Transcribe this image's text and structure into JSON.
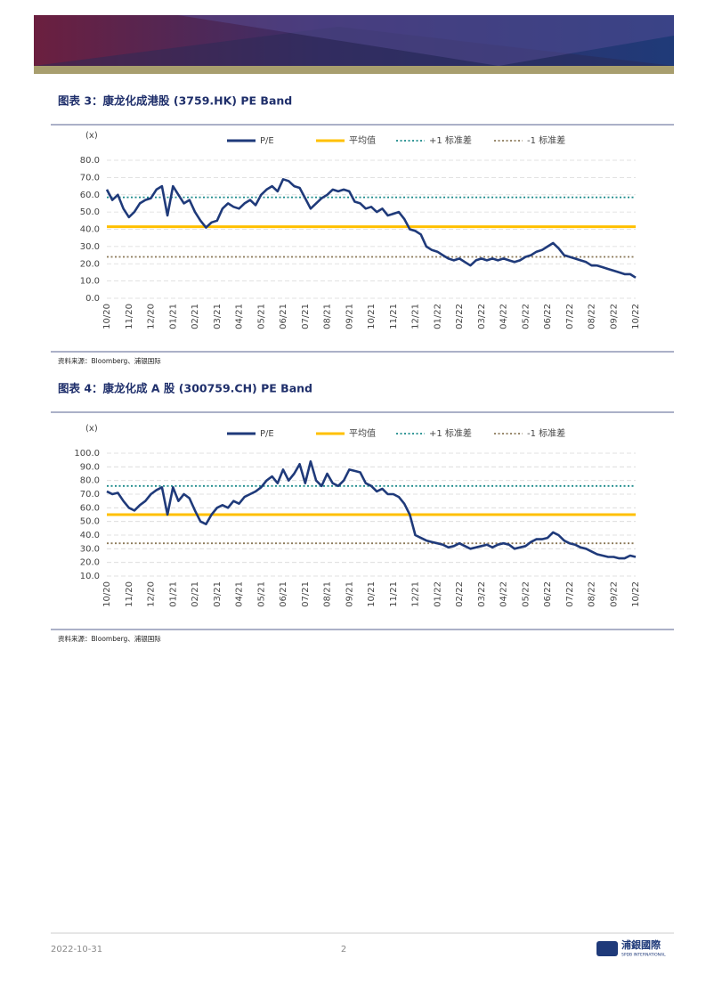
{
  "chart_data": [
    {
      "type": "line",
      "title": "图表 3：康龙化成港股 (3759.HK) PE Band",
      "y_label": "(x)",
      "source": "资料来源：Bloomberg、浦银国际",
      "categories": [
        "10/20",
        null,
        null,
        null,
        "11/20",
        null,
        null,
        null,
        "12/20",
        null,
        null,
        null,
        "01/21",
        null,
        null,
        null,
        "02/21",
        null,
        null,
        null,
        "03/21",
        null,
        null,
        null,
        "04/21",
        null,
        null,
        null,
        "05/21",
        null,
        null,
        null,
        "06/21",
        null,
        null,
        null,
        "07/21",
        null,
        null,
        null,
        "08/21",
        null,
        null,
        null,
        "09/21",
        null,
        null,
        null,
        "10/21",
        null,
        null,
        null,
        "11/21",
        null,
        null,
        null,
        "12/21",
        null,
        null,
        null,
        "01/22",
        null,
        null,
        null,
        "02/22",
        null,
        null,
        null,
        "03/22",
        null,
        null,
        null,
        "04/22",
        null,
        null,
        null,
        "05/22",
        null,
        null,
        null,
        "06/22",
        null,
        null,
        null,
        "07/22",
        null,
        null,
        null,
        "08/22",
        null,
        null,
        null,
        "09/22",
        null,
        null,
        null,
        "10/22"
      ],
      "series": [
        {
          "name": "P/E",
          "color": "#1f3a7a",
          "values": [
            63,
            57,
            60,
            52,
            47,
            50,
            55,
            57,
            58,
            63,
            65,
            48,
            65,
            60,
            55,
            57,
            50,
            45,
            41,
            44,
            45,
            52,
            55,
            53,
            52,
            55,
            57,
            54,
            60,
            63,
            65,
            62,
            69,
            68,
            65,
            64,
            58,
            52,
            55,
            58,
            60,
            63,
            62,
            63,
            62,
            56,
            55,
            52,
            53,
            50,
            52,
            48,
            49,
            50,
            46,
            40,
            39,
            37,
            30,
            28,
            27,
            25,
            23,
            22,
            23,
            21,
            19,
            22,
            23,
            22,
            23,
            22,
            23,
            22,
            21,
            22,
            24,
            25,
            27,
            28,
            30,
            32,
            29,
            25,
            24,
            23,
            22,
            21,
            19,
            19,
            18,
            17,
            16,
            15,
            14,
            14,
            12
          ]
        }
      ],
      "reference_lines": [
        {
          "name": "平均值",
          "value": 41.5,
          "color": "#ffc000",
          "style": "solid"
        },
        {
          "name": "+1 标准差",
          "value": 58.5,
          "color": "#1a8a8a",
          "style": "dotted"
        },
        {
          "name": "-1 标准差",
          "value": 24,
          "color": "#8c7a5a",
          "style": "dotted"
        }
      ],
      "ylim": [
        0,
        80
      ],
      "yticks": [
        {
          "value": 0,
          "label": "0.0"
        },
        {
          "value": 10,
          "label": "10.0"
        },
        {
          "value": 20,
          "label": "20.0"
        },
        {
          "value": 30,
          "label": "30.0"
        },
        {
          "value": 40,
          "label": "40.0"
        },
        {
          "value": 50,
          "label": "50.0"
        },
        {
          "value": 60,
          "label": "60.0"
        },
        {
          "value": 70,
          "label": "70.0"
        },
        {
          "value": 80,
          "label": "80.0"
        }
      ],
      "grid": true
    },
    {
      "type": "line",
      "title": "图表 4：康龙化成 A 股 (300759.CH) PE Band",
      "y_label": "(x)",
      "source": "资料来源：Bloomberg、浦银国际",
      "categories": [
        "10/20",
        null,
        null,
        null,
        "11/20",
        null,
        null,
        null,
        "12/20",
        null,
        null,
        null,
        "01/21",
        null,
        null,
        null,
        "02/21",
        null,
        null,
        null,
        "03/21",
        null,
        null,
        null,
        "04/21",
        null,
        null,
        null,
        "05/21",
        null,
        null,
        null,
        "06/21",
        null,
        null,
        null,
        "07/21",
        null,
        null,
        null,
        "08/21",
        null,
        null,
        null,
        "09/21",
        null,
        null,
        null,
        "10/21",
        null,
        null,
        null,
        "11/21",
        null,
        null,
        null,
        "12/21",
        null,
        null,
        null,
        "01/22",
        null,
        null,
        null,
        "02/22",
        null,
        null,
        null,
        "03/22",
        null,
        null,
        null,
        "04/22",
        null,
        null,
        null,
        "05/22",
        null,
        null,
        null,
        "06/22",
        null,
        null,
        null,
        "07/22",
        null,
        null,
        null,
        "08/22",
        null,
        null,
        null,
        "09/22",
        null,
        null,
        null,
        "10/22"
      ],
      "series": [
        {
          "name": "P/E",
          "color": "#1f3a7a",
          "values": [
            72,
            70,
            71,
            65,
            60,
            58,
            62,
            65,
            70,
            73,
            75,
            55,
            75,
            65,
            70,
            67,
            58,
            50,
            48,
            55,
            60,
            62,
            60,
            65,
            63,
            68,
            70,
            72,
            75,
            80,
            83,
            78,
            88,
            80,
            85,
            92,
            78,
            94,
            80,
            76,
            85,
            78,
            76,
            80,
            88,
            87,
            86,
            78,
            76,
            72,
            74,
            70,
            70,
            68,
            63,
            55,
            40,
            38,
            36,
            35,
            34,
            33,
            31,
            32,
            34,
            32,
            30,
            31,
            32,
            33,
            31,
            33,
            34,
            33,
            30,
            31,
            32,
            35,
            37,
            37,
            38,
            42,
            40,
            36,
            34,
            33,
            31,
            30,
            28,
            26,
            25,
            24,
            24,
            23,
            23,
            25,
            24
          ]
        }
      ],
      "reference_lines": [
        {
          "name": "平均值",
          "value": 55,
          "color": "#ffc000",
          "style": "solid"
        },
        {
          "name": "+1 标准差",
          "value": 76,
          "color": "#1a8a8a",
          "style": "dotted"
        },
        {
          "name": "-1 标准差",
          "value": 34,
          "color": "#8c7a5a",
          "style": "dotted"
        }
      ],
      "ylim": [
        10,
        100
      ],
      "yticks": [
        {
          "value": 10,
          "label": "10.0"
        },
        {
          "value": 20,
          "label": "20.0"
        },
        {
          "value": 30,
          "label": "30.0"
        },
        {
          "value": 40,
          "label": "40.0"
        },
        {
          "value": 50,
          "label": "50.0"
        },
        {
          "value": 60,
          "label": "60.0"
        },
        {
          "value": 70,
          "label": "70.0"
        },
        {
          "value": 80,
          "label": "80.0"
        },
        {
          "value": 90,
          "label": "90.0"
        },
        {
          "value": 100,
          "label": "100.0"
        }
      ],
      "grid": true
    }
  ],
  "footer": {
    "date": "2022-10-31",
    "page": "2",
    "logo": "浦銀國際",
    "logo_sub": "SPDB INTERNATIONAL"
  }
}
